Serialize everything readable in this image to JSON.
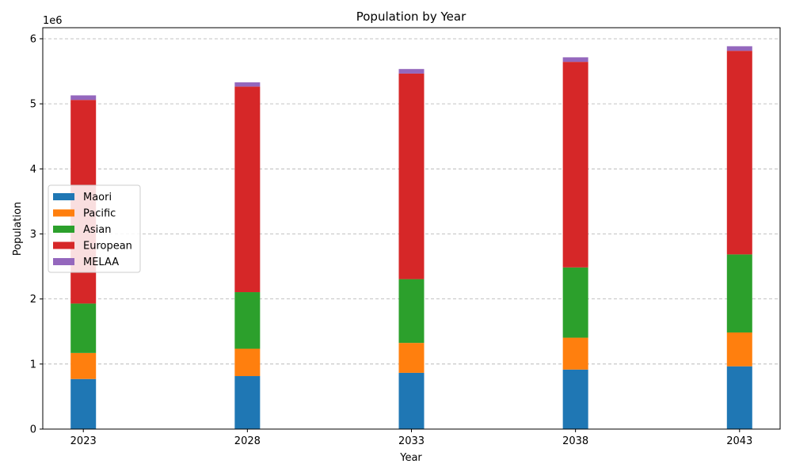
{
  "chart_data": {
    "type": "bar",
    "stacked": true,
    "title": "Population by Year",
    "xlabel": "Year",
    "ylabel": "Population",
    "y_offset_text": "1e6",
    "categories": [
      "2023",
      "2028",
      "2033",
      "2038",
      "2043"
    ],
    "ylim": [
      0,
      6170000
    ],
    "y_ticks": [
      0,
      1,
      2,
      3,
      4,
      5,
      6
    ],
    "y_tick_scale": 1000000,
    "grid": "y-dashed",
    "legend_position": "center-left",
    "series": [
      {
        "name": "Maori",
        "color": "#1f77b4",
        "values": [
          770000,
          815000,
          865000,
          915000,
          965000
        ]
      },
      {
        "name": "Pacific",
        "color": "#ff7f0e",
        "values": [
          400000,
          420000,
          460000,
          490000,
          520000
        ]
      },
      {
        "name": "Asian",
        "color": "#2ca02c",
        "values": [
          760000,
          870000,
          980000,
          1080000,
          1200000
        ]
      },
      {
        "name": "European",
        "color": "#d62728",
        "values": [
          3130000,
          3160000,
          3160000,
          3160000,
          3130000
        ]
      },
      {
        "name": "MELAA",
        "color": "#9467bd",
        "values": [
          70000,
          65000,
          70000,
          70000,
          70000
        ]
      }
    ]
  }
}
